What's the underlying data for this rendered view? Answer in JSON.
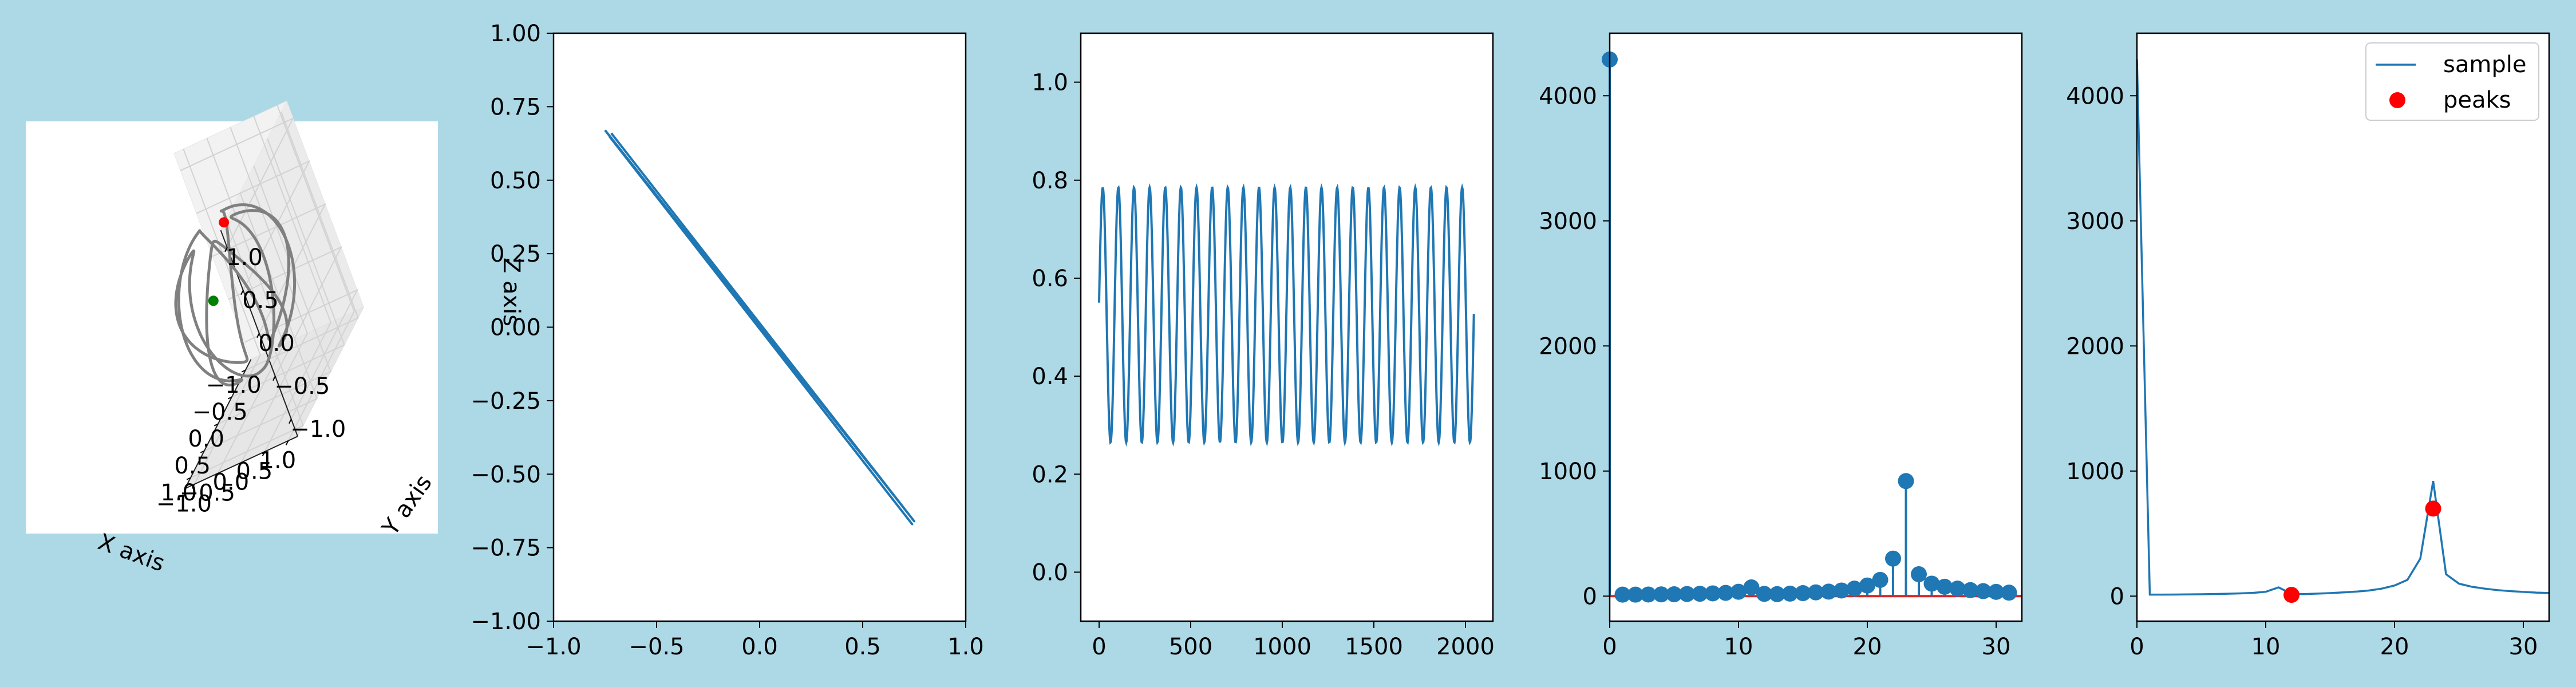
{
  "figure": {
    "background": "#add8e6"
  },
  "chart_data": [
    {
      "type": "line3d",
      "xlabel": "X axis",
      "ylabel": "Y axis",
      "zlabel": "Z axis",
      "xticks": [
        "−1.0",
        "−0.5",
        "0.0",
        "0.5",
        "1.0"
      ],
      "yticks": [
        "−1.0",
        "−0.5",
        "0.0",
        "0.5",
        "1.0"
      ],
      "zticks": [
        "−1.0",
        "−0.5",
        "0.0",
        "0.5",
        "1.0"
      ],
      "xlim": [
        -1.2,
        1.2
      ],
      "ylim": [
        -1.2,
        1.2
      ],
      "zlim": [
        -1.2,
        1.2
      ],
      "curve_color": "#808080",
      "curve": "closed knot winding around the unit sphere (5 lobes)",
      "markers": [
        {
          "label": "red",
          "color": "#ff0000",
          "x": -0.55,
          "y": -0.2,
          "z": 0.55
        },
        {
          "label": "green",
          "color": "#008000",
          "x": 0.75,
          "y": 0.2,
          "z": 0.35
        }
      ],
      "grid": true
    },
    {
      "type": "line",
      "xlim": [
        -1.0,
        1.0
      ],
      "ylim": [
        -1.0,
        1.0
      ],
      "xticks": [
        "−1.0",
        "−0.5",
        "0.0",
        "0.5",
        "1.0"
      ],
      "yticks": [
        "−1.00",
        "−0.75",
        "−0.50",
        "−0.25",
        "0.00",
        "0.25",
        "0.50",
        "0.75",
        "1.00"
      ],
      "color": "#1f77b4",
      "series": [
        {
          "x": [
            -0.75,
            0.74,
            -0.73
          ],
          "y": [
            0.67,
            -0.67,
            0.65
          ]
        },
        {
          "x": [
            -0.72,
            0.75,
            -0.75
          ],
          "y": [
            0.66,
            -0.66,
            0.67
          ]
        }
      ]
    },
    {
      "type": "line",
      "xlim": [
        -100,
        2150
      ],
      "ylim": [
        -0.1,
        1.1
      ],
      "xticks": [
        "0",
        "500",
        "1000",
        "1500",
        "2000"
      ],
      "yticks": [
        "0.0",
        "0.2",
        "0.4",
        "0.6",
        "0.8",
        "1.0"
      ],
      "color": "#1f77b4",
      "series": [
        {
          "n": 2048,
          "mean": 0.525,
          "amplitude": 0.26,
          "period": 85.3,
          "start": 0.55
        }
      ]
    },
    {
      "type": "stem",
      "xlim": [
        0,
        32
      ],
      "ylim": [
        -200,
        4500
      ],
      "xticks": [
        "0",
        "10",
        "20",
        "30"
      ],
      "yticks": [
        "0",
        "1000",
        "2000",
        "3000",
        "4000"
      ],
      "marker_color": "#1f77b4",
      "baseline_color": "#d62728",
      "x": [
        0,
        1,
        2,
        3,
        4,
        5,
        6,
        7,
        8,
        9,
        10,
        11,
        12,
        13,
        14,
        15,
        16,
        17,
        18,
        19,
        20,
        21,
        22,
        23,
        24,
        25,
        26,
        27,
        28,
        29,
        30,
        31
      ],
      "y": [
        4290,
        12,
        12,
        13,
        14,
        15,
        17,
        19,
        22,
        26,
        35,
        70,
        18,
        16,
        20,
        24,
        30,
        36,
        45,
        60,
        85,
        130,
        300,
        920,
        175,
        100,
        75,
        60,
        48,
        40,
        34,
        28
      ]
    },
    {
      "type": "line",
      "xlim": [
        0,
        32
      ],
      "ylim": [
        -200,
        4500
      ],
      "xticks": [
        "0",
        "10",
        "20",
        "30"
      ],
      "yticks": [
        "0",
        "1000",
        "2000",
        "3000",
        "4000"
      ],
      "series": [
        {
          "name": "sample",
          "color": "#1f77b4",
          "x": [
            0,
            1,
            2,
            3,
            4,
            5,
            6,
            7,
            8,
            9,
            10,
            11,
            12,
            13,
            14,
            15,
            16,
            17,
            18,
            19,
            20,
            21,
            22,
            23,
            24,
            25,
            26,
            27,
            28,
            29,
            30,
            31,
            32
          ],
          "y": [
            4290,
            12,
            12,
            13,
            14,
            15,
            17,
            19,
            22,
            26,
            35,
            70,
            18,
            16,
            20,
            24,
            30,
            36,
            45,
            60,
            85,
            130,
            300,
            920,
            175,
            100,
            75,
            60,
            48,
            40,
            34,
            28,
            25
          ]
        }
      ],
      "peaks": {
        "name": "peaks",
        "color": "#ff0000",
        "x": [
          12,
          23
        ],
        "y": [
          10,
          700
        ]
      },
      "legend": "top-right"
    }
  ]
}
